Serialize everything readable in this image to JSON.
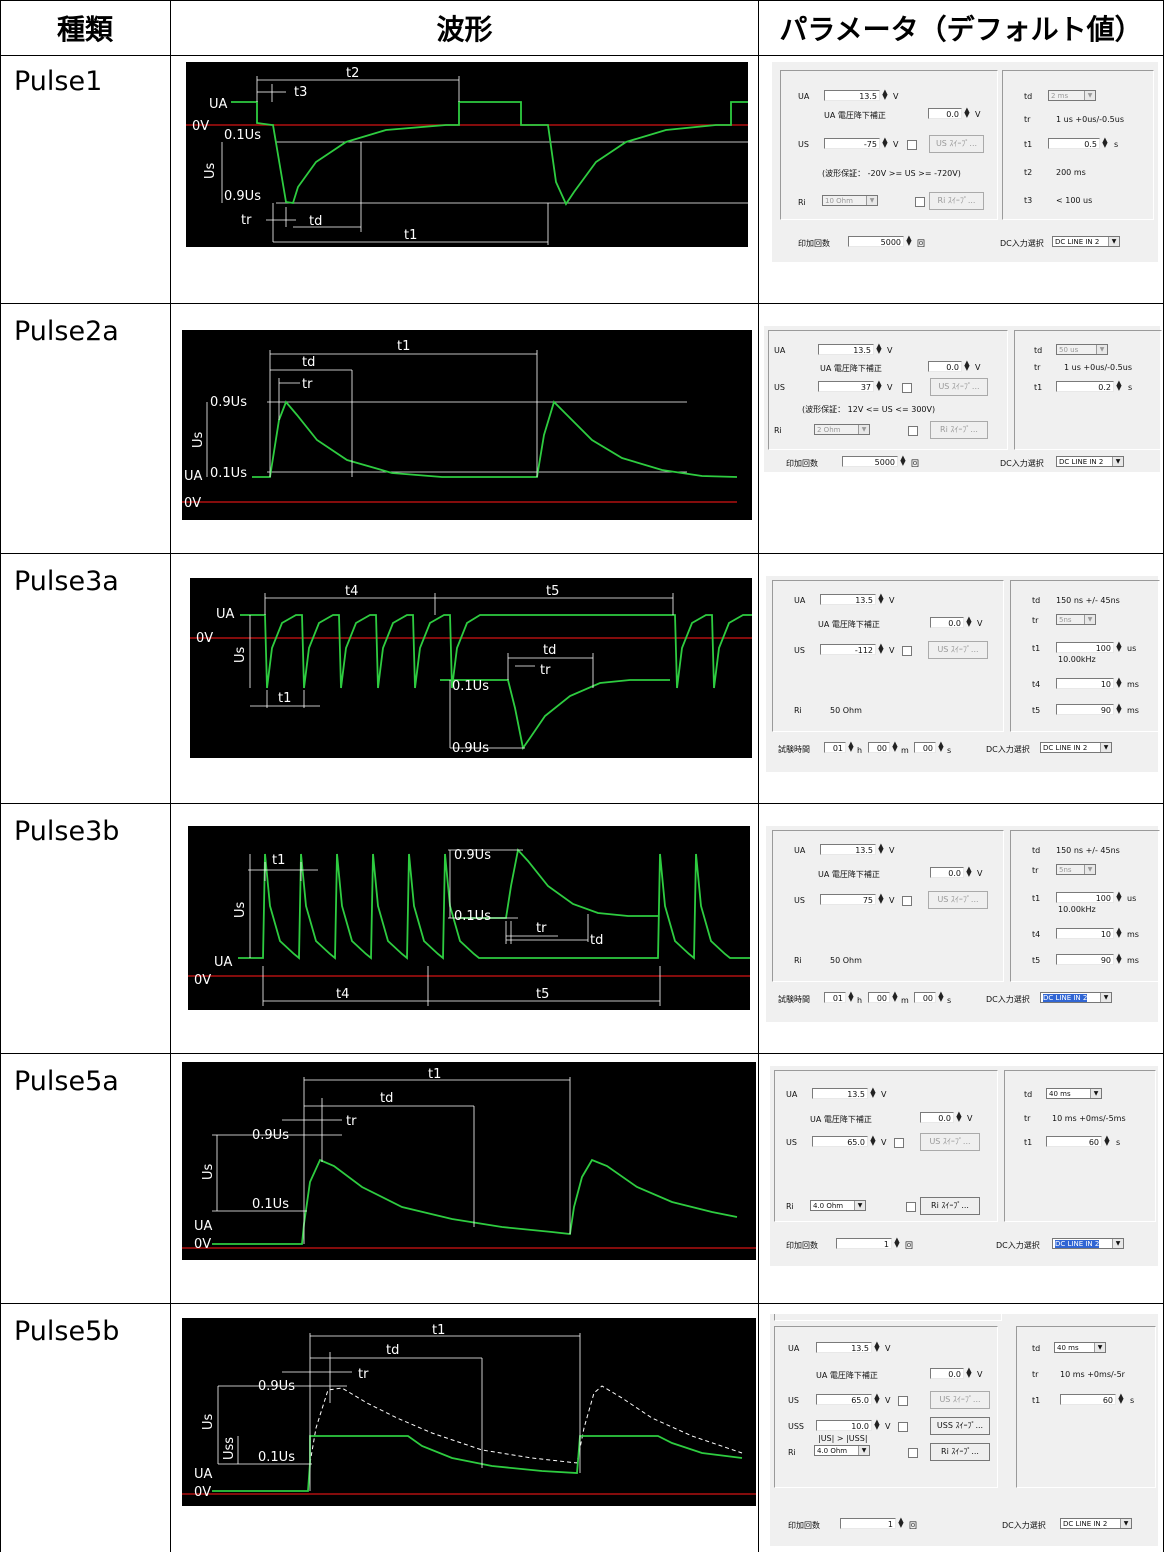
{
  "header": {
    "col_type": "種類",
    "col_wave": "波形",
    "col_params": "パラメータ（デフォルト値）"
  },
  "rows": [
    {
      "name": "Pulse1",
      "wave_labels": [
        "t2",
        "t3",
        "UA",
        "0V",
        "0.1Us",
        "Us",
        "0.9Us",
        "tr",
        "td",
        "t1"
      ],
      "params": {
        "ua_label": "UA",
        "ua": "13.5",
        "unit_v": "V",
        "drop_label": "UA 電圧降下補正",
        "drop": "0.0",
        "us_label": "US",
        "us": "-75",
        "us_btn": "US ｽｲｰﾌﾟ...",
        "note": "(波形保証： -20V >= US >= -720V)",
        "ri_label": "Ri",
        "ri": "10 Ohm",
        "ri_btn": "Ri ｽｲｰﾌﾟ...",
        "td_label": "td",
        "td": "2 ms",
        "tr_label": "tr",
        "tr": "1 us  +0us/-0.5us",
        "t1_label": "t1",
        "t1": "0.5",
        "t1_unit": "s",
        "t2_label": "t2",
        "t2": "200 ms",
        "t3_label": "t3",
        "t3": "< 100 us",
        "count_label": "印加回数",
        "count": "5000",
        "count_unit": "回",
        "dc_label": "DC入力選択",
        "dc": "DC LINE IN 2"
      }
    },
    {
      "name": "Pulse2a",
      "wave_labels": [
        "t1",
        "td",
        "tr",
        "0.9Us",
        "Us",
        "UA",
        "0.1Us",
        "0V"
      ],
      "params": {
        "ua_label": "UA",
        "ua": "13.5",
        "unit_v": "V",
        "drop_label": "UA 電圧降下補正",
        "drop": "0.0",
        "us_label": "US",
        "us": "37",
        "us_btn": "US ｽｲｰﾌﾟ...",
        "note": "(波形保証： 12V <= US <= 300V)",
        "ri_label": "Ri",
        "ri": "2 Ohm",
        "ri_btn": "Ri ｽｲｰﾌﾟ...",
        "td_label": "td",
        "td": "50 us",
        "tr_label": "tr",
        "tr": "1 us  +0us/-0.5us",
        "t1_label": "t1",
        "t1": "0.2",
        "t1_unit": "s",
        "count_label": "印加回数",
        "count": "5000",
        "count_unit": "回",
        "dc_label": "DC入力選択",
        "dc": "DC LINE IN 2"
      }
    },
    {
      "name": "Pulse3a",
      "wave_labels": [
        "t4",
        "t5",
        "UA",
        "0V",
        "Us",
        "td",
        "tr",
        "0.1Us",
        "t1",
        "0.9Us"
      ],
      "params": {
        "ua_label": "UA",
        "ua": "13.5",
        "unit_v": "V",
        "drop_label": "UA 電圧降下補正",
        "drop": "0.0",
        "us_label": "US",
        "us": "-112",
        "us_btn": "US ｽｲｰﾌﾟ...",
        "ri_label": "Ri",
        "ri": "50 Ohm",
        "td_label": "td",
        "td": "150 ns  +/- 45ns",
        "tr_label": "tr",
        "tr": "5ns",
        "t1_label": "t1",
        "t1": "100",
        "t1_unit": "us",
        "freq": "10.00kHz",
        "t4_label": "t4",
        "t4": "10",
        "t4_unit": "ms",
        "t5_label": "t5",
        "t5": "90",
        "t5_unit": "ms",
        "time_label": "試験時間",
        "h": "01",
        "m": "00",
        "s": "00",
        "h_unit": "h",
        "m_unit": "m",
        "s_unit": "s",
        "dc_label": "DC入力選択",
        "dc": "DC LINE IN 2"
      }
    },
    {
      "name": "Pulse3b",
      "wave_labels": [
        "t1",
        "0.9Us",
        "Us",
        "0.1Us",
        "tr",
        "td",
        "UA",
        "0V",
        "t4",
        "t5"
      ],
      "params": {
        "ua_label": "UA",
        "ua": "13.5",
        "unit_v": "V",
        "drop_label": "UA 電圧降下補正",
        "drop": "0.0",
        "us_label": "US",
        "us": "75",
        "us_btn": "US ｽｲｰﾌﾟ...",
        "ri_label": "Ri",
        "ri": "50 Ohm",
        "td_label": "td",
        "td": "150 ns  +/- 45ns",
        "tr_label": "tr",
        "tr": "5ns",
        "t1_label": "t1",
        "t1": "100",
        "t1_unit": "us",
        "freq": "10.00kHz",
        "t4_label": "t4",
        "t4": "10",
        "t4_unit": "ms",
        "t5_label": "t5",
        "t5": "90",
        "t5_unit": "ms",
        "time_label": "試験時間",
        "h": "01",
        "m": "00",
        "s": "00",
        "h_unit": "h",
        "m_unit": "m",
        "s_unit": "s",
        "dc_label": "DC入力選択",
        "dc": "DC LINE IN 2"
      }
    },
    {
      "name": "Pulse5a",
      "wave_labels": [
        "t1",
        "td",
        "tr",
        "0.9Us",
        "Us",
        "0.1Us",
        "UA",
        "0V"
      ],
      "params": {
        "ua_label": "UA",
        "ua": "13.5",
        "unit_v": "V",
        "drop_label": "UA 電圧降下補正",
        "drop": "0.0",
        "us_label": "US",
        "us": "65.0",
        "us_btn": "US ｽｲｰﾌﾟ...",
        "ri_label": "Ri",
        "ri": "4.0 Ohm",
        "ri_btn": "Ri ｽｲｰﾌﾟ...",
        "td_label": "td",
        "td": "40 ms",
        "tr_label": "tr",
        "tr": "10 ms  +0ms/-5ms",
        "t1_label": "t1",
        "t1": "60",
        "t1_unit": "s",
        "count_label": "印加回数",
        "count": "1",
        "count_unit": "回",
        "dc_label": "DC入力選択",
        "dc": "DC LINE IN 2"
      }
    },
    {
      "name": "Pulse5b",
      "wave_labels": [
        "t1",
        "td",
        "tr",
        "0.9Us",
        "Us",
        "Uss",
        "0.1Us",
        "UA",
        "0V"
      ],
      "params": {
        "ua_label": "UA",
        "ua": "13.5",
        "unit_v": "V",
        "drop_label": "UA 電圧降下補正",
        "drop": "0.0",
        "us_label": "US",
        "us": "65.0",
        "us_btn": "US ｽｲｰﾌﾟ...",
        "uss_label": "USS",
        "uss": "10.0",
        "uss_btn": "USS ｽｲｰﾌﾟ...",
        "uss_note": "|US| > |USS|",
        "ri_label": "Ri",
        "ri": "4.0 Ohm",
        "ri_btn": "Ri ｽｲｰﾌﾟ...",
        "td_label": "td",
        "td": "40 ms",
        "tr_label": "tr",
        "tr": "10 ms  +0ms/-5r",
        "t1_label": "t1",
        "t1": "60",
        "t1_unit": "s",
        "count_label": "印加回数",
        "count": "1",
        "count_unit": "回",
        "dc_label": "DC入力選択",
        "dc": "DC LINE IN 2"
      }
    }
  ],
  "colors": {
    "wave_bg": "#000000",
    "wave_line": "#2ecc40",
    "zero_line": "#b01010",
    "dim_line": "#ffffff",
    "select_highlight": "#3166d4"
  }
}
